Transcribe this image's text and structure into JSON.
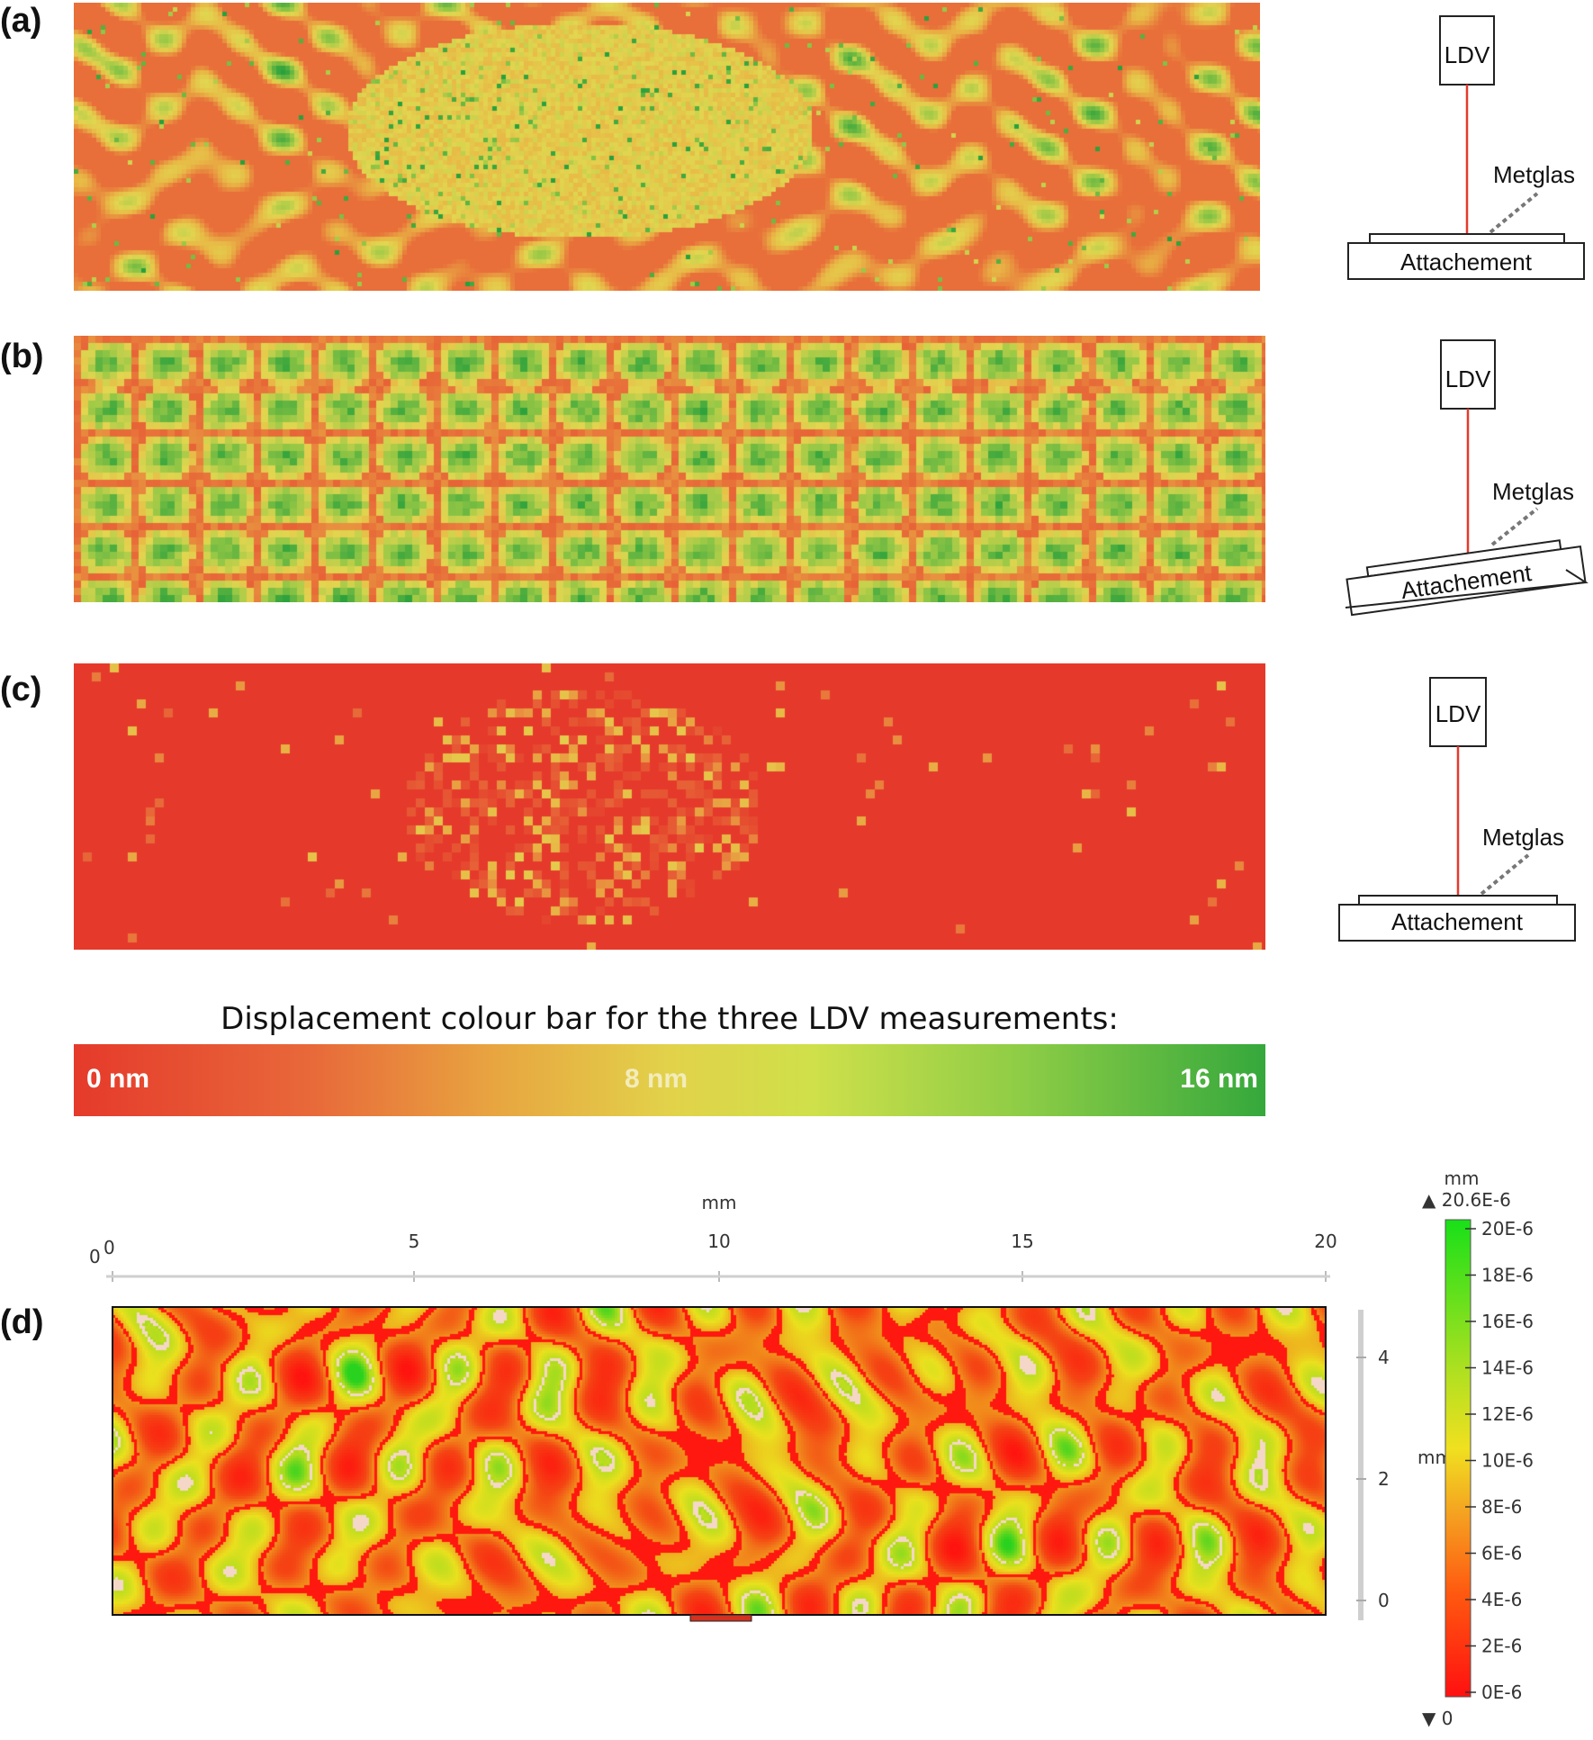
{
  "panels": {
    "a": {
      "label": "(a)"
    },
    "b": {
      "label": "(b)"
    },
    "c": {
      "label": "(c)"
    },
    "d": {
      "label": "(d)"
    }
  },
  "diagram": {
    "ldv_label": "LDV",
    "metglas_label": "Metglas",
    "attachment_label": "Attachement"
  },
  "ldv_colour_bar": {
    "title": "Displacement colour bar for the three LDV measurements:",
    "ticks": [
      "0 nm",
      "8 nm",
      "16 nm"
    ],
    "colors": {
      "low": "#e53a2b",
      "mid": "#e2d24a",
      "high": "#35a83c"
    }
  },
  "simulation": {
    "x_axis": {
      "unit": "mm",
      "ticks": [
        "0",
        "5",
        "10",
        "15",
        "20"
      ],
      "origin_label": "0"
    },
    "y_axis": {
      "unit": "mm",
      "ticks": [
        "4",
        "2",
        "0"
      ]
    },
    "colour_bar": {
      "unit": "mm",
      "max_label": "▲ 20.6E-6",
      "min_label": "▼ 0",
      "ticks": [
        "20E-6",
        "18E-6",
        "16E-6",
        "14E-6",
        "12E-6",
        "10E-6",
        "8E-6",
        "6E-6",
        "4E-6",
        "2E-6",
        "0E-6"
      ]
    }
  }
}
